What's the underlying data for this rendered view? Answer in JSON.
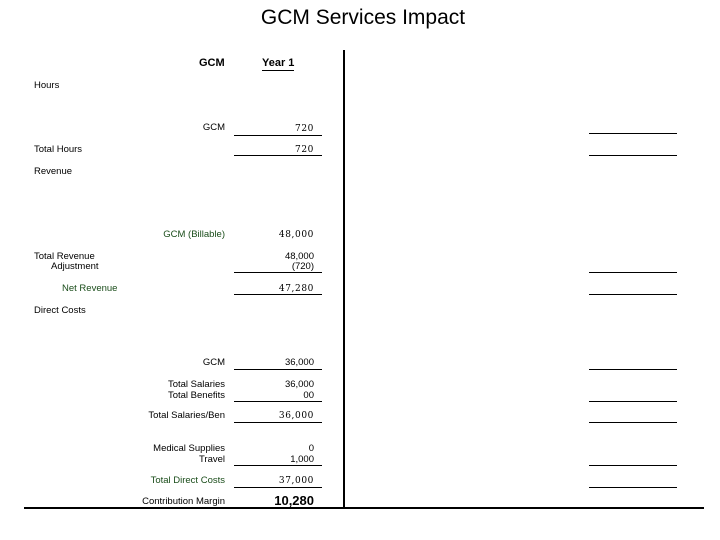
{
  "title": "GCM Services Impact",
  "header": {
    "col1": "GCM",
    "col2": "Year 1"
  },
  "sections": {
    "hours": "Hours",
    "revenue": "Revenue",
    "direct_costs": "Direct Costs"
  },
  "rows": {
    "gcm_hours": {
      "label": "GCM",
      "value": "720"
    },
    "total_hours": {
      "label": "Total Hours",
      "value": "720"
    },
    "gcm_billable": {
      "label": "GCM (Billable)",
      "value": "48,000"
    },
    "total_revenue": {
      "label": "Total Revenue",
      "value": "48,000"
    },
    "adjustment": {
      "label": "Adjustment",
      "value": "(720)"
    },
    "net_revenue": {
      "label": "Net Revenue",
      "value": "47,280"
    },
    "gcm_cost": {
      "label": "GCM",
      "value": "36,000"
    },
    "total_salaries": {
      "label": "Total Salaries",
      "value": "36,000"
    },
    "total_benefits": {
      "label": "Total Benefits",
      "value": "00"
    },
    "salaries_ben": {
      "label": "Total Salaries/Ben",
      "value": "36,000"
    },
    "medical_supplies": {
      "label": "Medical Supplies",
      "value": "0"
    },
    "travel": {
      "label": "Travel",
      "value": "1,000"
    },
    "total_direct_costs": {
      "label": "Total Direct Costs",
      "value": "37,000"
    },
    "contribution_margin": {
      "label": "Contribution Margin",
      "value": "10,280"
    }
  }
}
